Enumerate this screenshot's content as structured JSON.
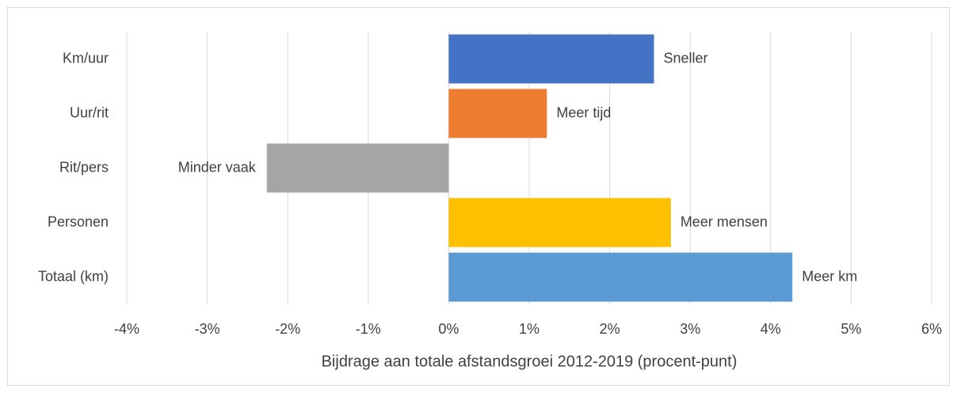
{
  "chart_data": {
    "type": "barh",
    "x_label": "Bijdrage aan totale afstandsgroei 2012-2019 (procent-punt)",
    "categories": [
      "Km/uur",
      "Uur/rit",
      "Rit/pers",
      "Personen",
      "Totaal (km)"
    ],
    "values": [
      2.55,
      1.22,
      -2.26,
      2.76,
      4.27
    ],
    "bar_labels": [
      "Sneller",
      "Meer tijd",
      "Minder vaak",
      "Meer mensen",
      "Meer km"
    ],
    "colors": [
      "#4472c4",
      "#ed7d31",
      "#a5a5a5",
      "#ffc000",
      "#5b9bd5"
    ],
    "xlim": [
      -4,
      6
    ],
    "xticks": [
      {
        "value": -4,
        "label": "-4%"
      },
      {
        "value": -3,
        "label": "-3%"
      },
      {
        "value": -2,
        "label": "-2%"
      },
      {
        "value": -1,
        "label": "-1%"
      },
      {
        "value": 0,
        "label": "0%"
      },
      {
        "value": 1,
        "label": "1%"
      },
      {
        "value": 2,
        "label": "2%"
      },
      {
        "value": 3,
        "label": "3%"
      },
      {
        "value": 4,
        "label": "4%"
      },
      {
        "value": 5,
        "label": "5%"
      },
      {
        "value": 6,
        "label": "6%"
      }
    ],
    "grid": true
  }
}
